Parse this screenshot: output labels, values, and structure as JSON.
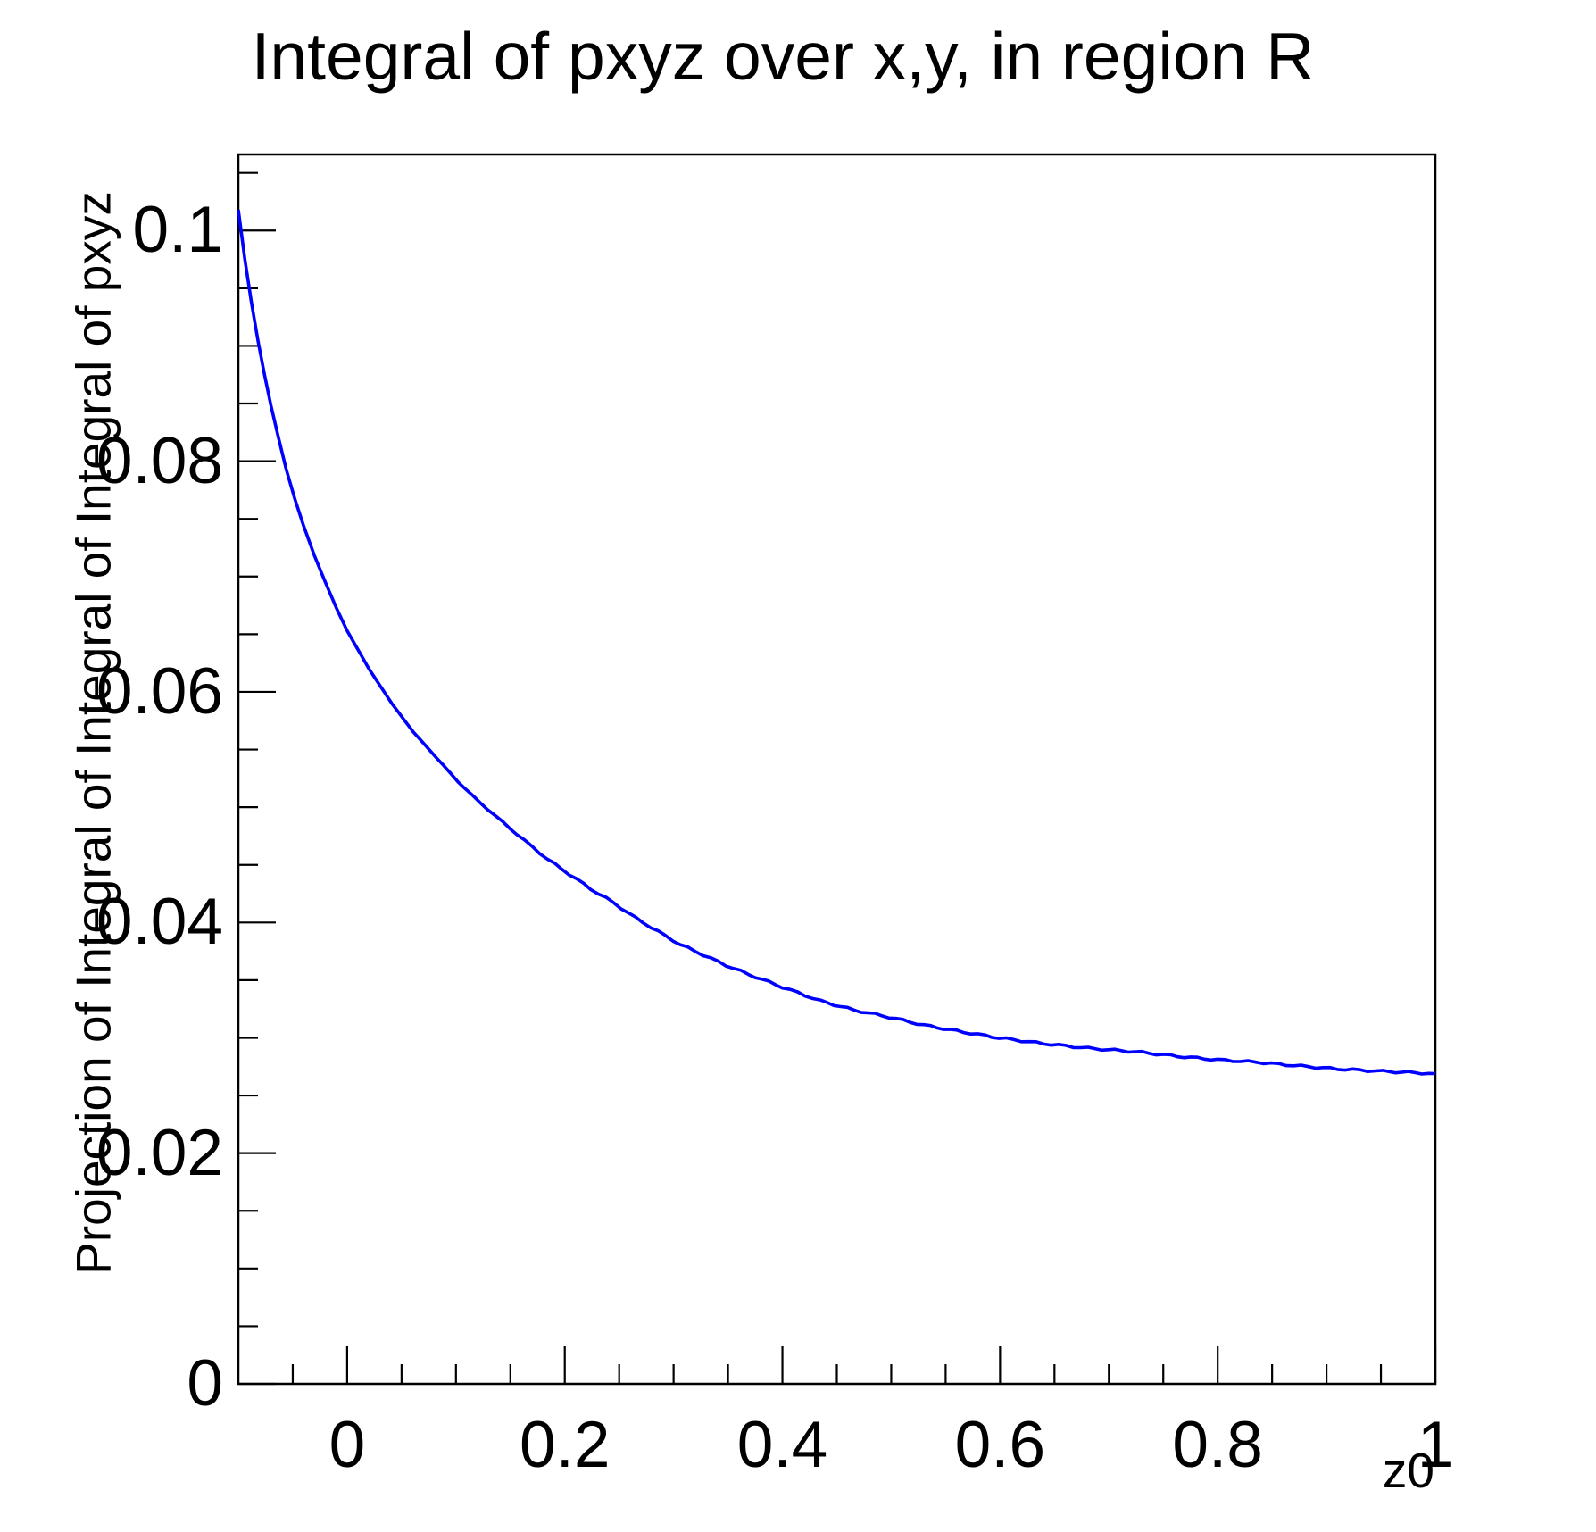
{
  "title": "Integral of pxyz over x,y, in region R",
  "x_axis": {
    "label": "z0",
    "tick_labels": [
      "0",
      "0.2",
      "0.4",
      "0.6",
      "0.8",
      "1"
    ],
    "tick_values": [
      0,
      0.2,
      0.4,
      0.6,
      0.8,
      1
    ],
    "minor_step": 0.05,
    "range": [
      -0.1,
      1.0
    ]
  },
  "y_axis": {
    "label": "Projection of Integral of Integral of Integral of pxyz",
    "tick_labels": [
      "0",
      "0.02",
      "0.04",
      "0.06",
      "0.08",
      "0.1"
    ],
    "tick_values": [
      0,
      0.02,
      0.04,
      0.06,
      0.08,
      0.1
    ],
    "minor_step": 0.005,
    "range": [
      0,
      0.1066
    ]
  },
  "style": {
    "curve_color": "#0000ff",
    "axis_color": "#000000",
    "background": "#ffffff"
  },
  "chart_data": {
    "type": "line",
    "title": "Integral of pxyz over x,y, in region R",
    "xlabel": "z0",
    "ylabel": "Projection of Integral of Integral of Integral of pxyz",
    "xlim": [
      -0.1,
      1.0
    ],
    "ylim": [
      0,
      0.1066
    ],
    "grid": false,
    "legend": false,
    "series": [
      {
        "name": "Integral of pxyz over x,y, in region R",
        "color": "#0000ff",
        "x": [
          -0.1,
          -0.094,
          -0.088,
          -0.082,
          -0.076,
          -0.07,
          -0.063,
          -0.056,
          -0.048,
          -0.04,
          -0.03,
          -0.02,
          -0.01,
          0,
          0.02,
          0.041,
          0.061,
          0.082,
          0.102,
          0.122,
          0.143,
          0.163,
          0.184,
          0.204,
          0.224,
          0.245,
          0.265,
          0.286,
          0.306,
          0.327,
          0.348,
          0.369,
          0.4,
          0.435,
          0.466,
          0.498,
          0.53,
          0.56,
          0.599,
          0.64,
          0.681,
          0.724,
          0.763,
          0.8,
          0.835,
          0.87,
          0.91,
          0.952,
          0.975,
          1
        ],
        "y": [
          0.1018,
          0.0975,
          0.0938,
          0.0905,
          0.0875,
          0.0848,
          0.082,
          0.0793,
          0.0767,
          0.0744,
          0.0718,
          0.0695,
          0.0673,
          0.0653,
          0.062,
          0.059,
          0.0565,
          0.0543,
          0.0522,
          0.0504,
          0.0487,
          0.0471,
          0.0455,
          0.0442,
          0.0429,
          0.0417,
          0.0404,
          0.0392,
          0.0381,
          0.0372,
          0.0363,
          0.0355,
          0.0344,
          0.0332,
          0.0324,
          0.0318,
          0.0311,
          0.0306,
          0.03,
          0.0295,
          0.0291,
          0.0288,
          0.0284,
          0.0281,
          0.0279,
          0.0276,
          0.0273,
          0.0271,
          0.027,
          0.0269
        ]
      }
    ]
  }
}
